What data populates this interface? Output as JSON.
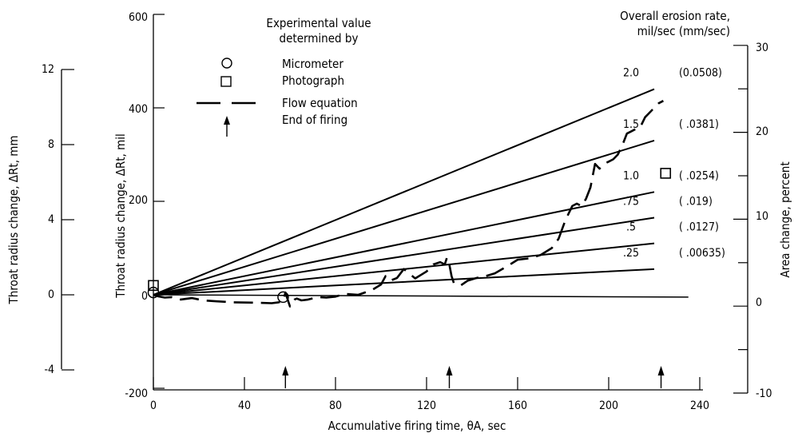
{
  "chart_data": {
    "type": "line",
    "title": "",
    "xlabel": "Accumulative firing time, θA, sec",
    "ylabel": "Throat radius change, ΔRt, mil",
    "ylabel_mm": "Throat radius change, ΔRt, mm",
    "ylabel_right": "Area change, percent",
    "xlim": [
      0,
      240
    ],
    "ylim": [
      -200,
      600
    ],
    "ylim_mm": [
      -4,
      12
    ],
    "ylim_right": [
      -10,
      30
    ],
    "x_ticks": [
      "0",
      "40",
      "80",
      "120",
      "160",
      "200",
      "240"
    ],
    "y_ticks": [
      "-200",
      "0",
      "200",
      "400",
      "600"
    ],
    "y_ticks_mm": [
      "-4",
      "0",
      "4",
      "8",
      "12"
    ],
    "y_ticks_right": [
      "-10",
      "0",
      "10",
      "20",
      "30"
    ],
    "legend": {
      "title_line1": "Experimental value",
      "title_line2": "determined by",
      "items": [
        "Micrometer",
        "Photograph",
        "Flow equation",
        "End of firing"
      ]
    },
    "rate_header_line1": "Overall erosion rate,",
    "rate_header_line2": "mil/sec  (mm/sec)",
    "series": [
      {
        "rate_mil": "2.0",
        "rate_mm": "(0.0508)",
        "x": [
          0,
          220
        ],
        "y": [
          0,
          440
        ]
      },
      {
        "rate_mil": "1.5",
        "rate_mm": "( .0381)",
        "x": [
          0,
          220
        ],
        "y": [
          0,
          330
        ]
      },
      {
        "rate_mil": "1.0",
        "rate_mm": "( .0254)",
        "x": [
          0,
          220
        ],
        "y": [
          0,
          220
        ]
      },
      {
        "rate_mil": ".75",
        "rate_mm": "( .019)",
        "x": [
          0,
          220
        ],
        "y": [
          0,
          165
        ]
      },
      {
        "rate_mil": ".5",
        "rate_mm": "( .0127)",
        "x": [
          0,
          220
        ],
        "y": [
          0,
          110
        ]
      },
      {
        "rate_mil": ".25",
        "rate_mm": "( .00635)",
        "x": [
          0,
          220
        ],
        "y": [
          0,
          55
        ]
      }
    ],
    "zero_rate_line": {
      "x": [
        0,
        235
      ],
      "y": [
        0,
        -5
      ]
    },
    "flow_equation": {
      "x": [
        0,
        2,
        5,
        8,
        12,
        17,
        22,
        28,
        35,
        45,
        52,
        55,
        57,
        58,
        59,
        60,
        61,
        62,
        63,
        65,
        68,
        72,
        76,
        80,
        84,
        90,
        96,
        100,
        102,
        104,
        107,
        110,
        115,
        120,
        123,
        126,
        128,
        129,
        130,
        131,
        132,
        135,
        138,
        142,
        146,
        150,
        155,
        160,
        165,
        170,
        175,
        178,
        181,
        184,
        186,
        188,
        190,
        192,
        194,
        196,
        198,
        200,
        202,
        204,
        206,
        208,
        210,
        212,
        214,
        216,
        218,
        220,
        222,
        224
      ],
      "y": [
        0,
        -3,
        -6,
        -5,
        -10,
        -7,
        -12,
        -14,
        -16,
        -17,
        -18,
        -16,
        -14,
        5,
        -10,
        -25,
        -14,
        -10,
        -8,
        -12,
        -10,
        -5,
        -6,
        -4,
        2,
        0,
        10,
        22,
        40,
        30,
        36,
        55,
        35,
        50,
        65,
        70,
        65,
        80,
        65,
        40,
        25,
        20,
        30,
        36,
        40,
        46,
        60,
        75,
        78,
        85,
        100,
        120,
        160,
        190,
        195,
        190,
        205,
        230,
        280,
        270,
        280,
        285,
        290,
        300,
        320,
        345,
        350,
        355,
        360,
        380,
        390,
        400,
        410,
        415
      ]
    },
    "micrometer": [
      {
        "x": 0,
        "y": 5
      },
      {
        "x": 57,
        "y": -5
      }
    ],
    "photograph": [
      {
        "x": 0,
        "y": 20
      },
      {
        "x": 225,
        "y": 260
      }
    ],
    "end_of_firing_x": [
      58,
      130,
      223
    ]
  }
}
